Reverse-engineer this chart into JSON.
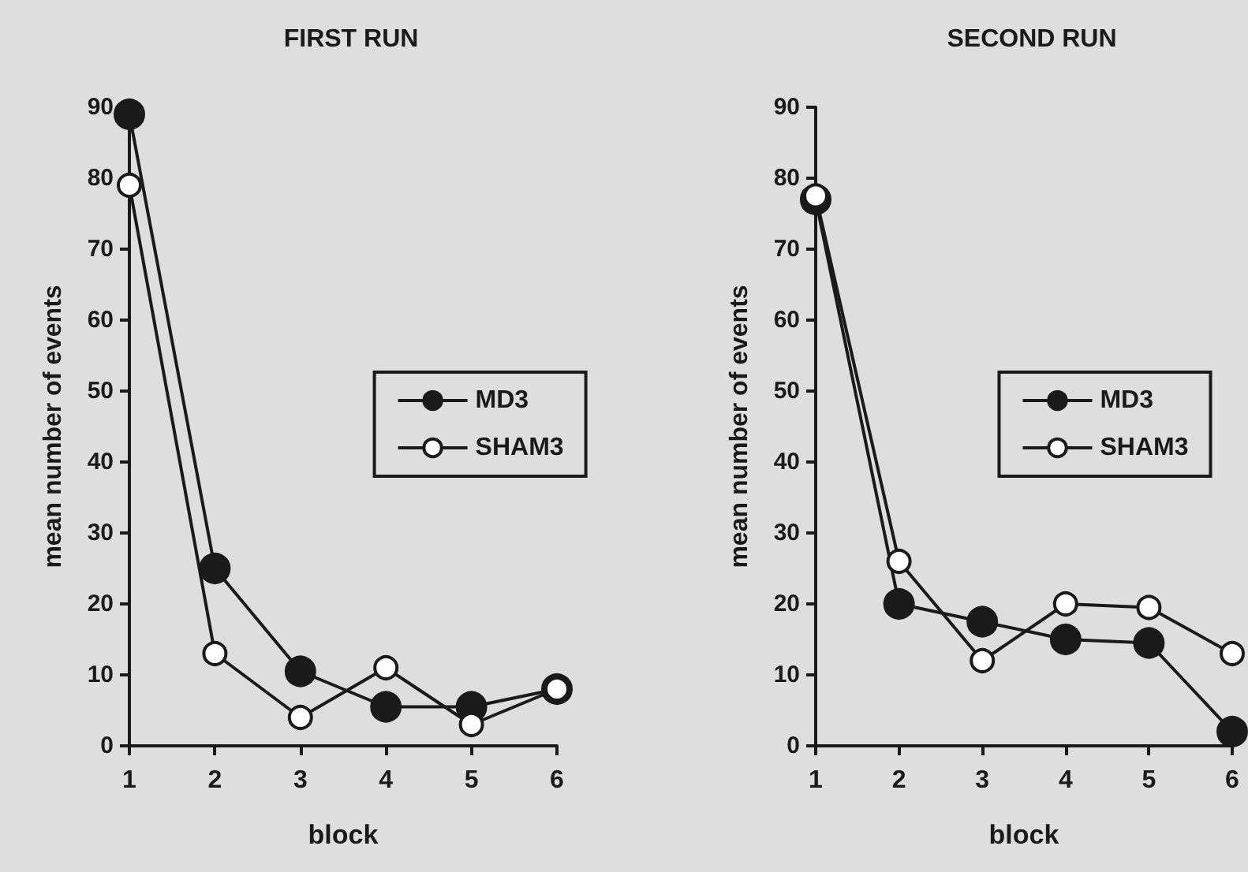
{
  "chart_data": [
    {
      "type": "line",
      "title": "FIRST RUN",
      "xlabel": "block",
      "ylabel": "mean number of events",
      "x": [
        1,
        2,
        3,
        4,
        5,
        6
      ],
      "xlim": [
        1,
        6
      ],
      "xticks": [
        1,
        2,
        3,
        4,
        5,
        6
      ],
      "ylim": [
        0,
        90
      ],
      "yticks": [
        0,
        10,
        20,
        30,
        40,
        50,
        60,
        70,
        80,
        90
      ],
      "series": [
        {
          "name": "MD3",
          "color": "#1a1a1a",
          "values": [
            89,
            25,
            10.5,
            5.5,
            5.5,
            8
          ]
        },
        {
          "name": "SHAM3",
          "color": "#ffffff",
          "values": [
            79,
            13,
            4,
            11,
            3,
            8
          ]
        }
      ],
      "legend": "right",
      "marker": "circle",
      "grid": false
    },
    {
      "type": "line",
      "title": "SECOND RUN",
      "xlabel": "block",
      "ylabel": "mean number of events",
      "x": [
        1,
        2,
        3,
        4,
        5,
        6
      ],
      "xlim": [
        1,
        6
      ],
      "xticks": [
        1,
        2,
        3,
        4,
        5,
        6
      ],
      "ylim": [
        0,
        90
      ],
      "yticks": [
        0,
        10,
        20,
        30,
        40,
        50,
        60,
        70,
        80,
        90
      ],
      "series": [
        {
          "name": "MD3",
          "color": "#1a1a1a",
          "values": [
            77,
            20,
            17.5,
            15,
            14.5,
            2
          ]
        },
        {
          "name": "SHAM3",
          "color": "#ffffff",
          "values": [
            77.5,
            26,
            12,
            20,
            19.5,
            13
          ]
        }
      ],
      "legend": "right",
      "marker": "circle",
      "grid": false
    }
  ]
}
